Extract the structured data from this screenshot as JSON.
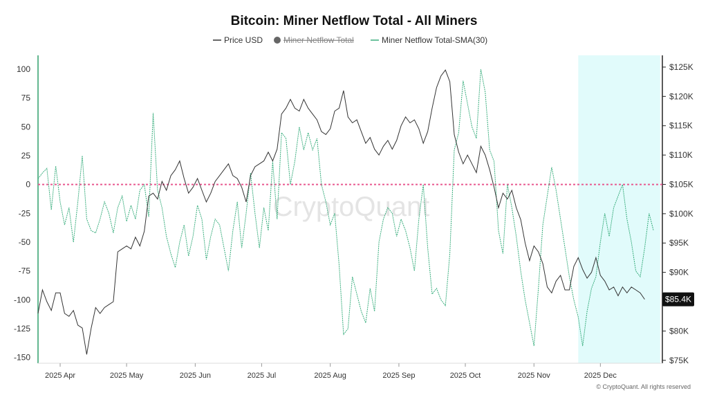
{
  "chart_data": {
    "type": "line",
    "title": "Bitcoin: Miner Netflow Total - All Miners",
    "legend": [
      {
        "name": "Price USD",
        "color": "#333333",
        "hidden": false
      },
      {
        "name": "Miner Netflow Total",
        "color": "#777777",
        "hidden": true
      },
      {
        "name": "Miner Netflow Total-SMA(30)",
        "color": "#3aae7e",
        "hidden": false
      }
    ],
    "x_ticks": [
      "2025 Apr",
      "2025 May",
      "2025 Jun",
      "2025 Jul",
      "2025 Aug",
      "2025 Sep",
      "2025 Oct",
      "2025 Nov",
      "2025 Dec"
    ],
    "x_tick_days": [
      10,
      40,
      71,
      101,
      132,
      163,
      193,
      224,
      254
    ],
    "x_range_days": [
      0,
      282
    ],
    "left_axis": {
      "ticks": [
        100,
        75,
        50,
        25,
        0,
        -25,
        -50,
        -75,
        -100,
        -125,
        -150
      ],
      "range": [
        -155,
        112
      ]
    },
    "right_axis": {
      "ticks": [
        "$125K",
        "$120K",
        "$115K",
        "$110K",
        "$105K",
        "$100K",
        "$95K",
        "$90K",
        "$80K",
        "$75K"
      ],
      "tick_values": [
        125000,
        120000,
        115000,
        110000,
        105000,
        100000,
        95000,
        90000,
        80000,
        75000
      ],
      "range": [
        74500,
        127000
      ]
    },
    "zero_line_color": "#e8588f",
    "highlight_range_days": [
      244,
      281
    ],
    "highlight_color": "#e1fbfb",
    "current_price_label": "$85.4K",
    "watermark": "CryptoQuant",
    "series": [
      {
        "name": "Price USD",
        "color": "#333333",
        "axis": "right",
        "points": [
          [
            0,
            83000
          ],
          [
            2,
            87000
          ],
          [
            4,
            85000
          ],
          [
            6,
            83500
          ],
          [
            8,
            86500
          ],
          [
            10,
            86500
          ],
          [
            12,
            83000
          ],
          [
            14,
            82500
          ],
          [
            16,
            83500
          ],
          [
            18,
            81000
          ],
          [
            20,
            80500
          ],
          [
            22,
            76000
          ],
          [
            24,
            80500
          ],
          [
            26,
            84000
          ],
          [
            28,
            83000
          ],
          [
            30,
            84000
          ],
          [
            32,
            84500
          ],
          [
            34,
            85000
          ],
          [
            36,
            93500
          ],
          [
            38,
            94000
          ],
          [
            40,
            94500
          ],
          [
            42,
            94000
          ],
          [
            44,
            96000
          ],
          [
            46,
            94500
          ],
          [
            48,
            97000
          ],
          [
            50,
            103000
          ],
          [
            52,
            103500
          ],
          [
            54,
            102500
          ],
          [
            56,
            105500
          ],
          [
            58,
            104000
          ],
          [
            60,
            106500
          ],
          [
            62,
            107500
          ],
          [
            64,
            109000
          ],
          [
            66,
            106000
          ],
          [
            68,
            103500
          ],
          [
            70,
            104500
          ],
          [
            72,
            106000
          ],
          [
            74,
            104000
          ],
          [
            76,
            102000
          ],
          [
            78,
            103500
          ],
          [
            80,
            105500
          ],
          [
            82,
            106500
          ],
          [
            84,
            107500
          ],
          [
            86,
            108500
          ],
          [
            88,
            106500
          ],
          [
            90,
            106000
          ],
          [
            92,
            104500
          ],
          [
            94,
            102000
          ],
          [
            96,
            106500
          ],
          [
            98,
            108000
          ],
          [
            100,
            108500
          ],
          [
            102,
            109000
          ],
          [
            104,
            110500
          ],
          [
            106,
            109000
          ],
          [
            108,
            111000
          ],
          [
            110,
            117000
          ],
          [
            112,
            118000
          ],
          [
            114,
            119500
          ],
          [
            116,
            118000
          ],
          [
            118,
            117500
          ],
          [
            120,
            119500
          ],
          [
            122,
            118000
          ],
          [
            124,
            117000
          ],
          [
            126,
            116000
          ],
          [
            128,
            114000
          ],
          [
            130,
            113500
          ],
          [
            132,
            114500
          ],
          [
            134,
            117500
          ],
          [
            136,
            118000
          ],
          [
            138,
            121000
          ],
          [
            140,
            116500
          ],
          [
            142,
            115500
          ],
          [
            144,
            116000
          ],
          [
            146,
            114000
          ],
          [
            148,
            112000
          ],
          [
            150,
            113000
          ],
          [
            152,
            111000
          ],
          [
            154,
            110000
          ],
          [
            156,
            111500
          ],
          [
            158,
            112500
          ],
          [
            160,
            111000
          ],
          [
            162,
            112500
          ],
          [
            164,
            115000
          ],
          [
            166,
            116500
          ],
          [
            168,
            115500
          ],
          [
            170,
            116000
          ],
          [
            172,
            114500
          ],
          [
            174,
            112000
          ],
          [
            176,
            114000
          ],
          [
            178,
            118000
          ],
          [
            180,
            121500
          ],
          [
            182,
            123500
          ],
          [
            184,
            124500
          ],
          [
            186,
            122500
          ],
          [
            188,
            113500
          ],
          [
            190,
            110500
          ],
          [
            192,
            108500
          ],
          [
            194,
            110000
          ],
          [
            196,
            108500
          ],
          [
            198,
            107000
          ],
          [
            200,
            111500
          ],
          [
            202,
            110000
          ],
          [
            204,
            107500
          ],
          [
            206,
            104500
          ],
          [
            208,
            101000
          ],
          [
            210,
            103500
          ],
          [
            212,
            102500
          ],
          [
            214,
            104000
          ],
          [
            216,
            101000
          ],
          [
            218,
            99000
          ],
          [
            220,
            95000
          ],
          [
            222,
            92000
          ],
          [
            224,
            94500
          ],
          [
            226,
            93500
          ],
          [
            228,
            91500
          ],
          [
            230,
            87500
          ],
          [
            232,
            86500
          ],
          [
            234,
            88500
          ],
          [
            236,
            89500
          ],
          [
            238,
            87000
          ],
          [
            240,
            87000
          ],
          [
            242,
            91000
          ],
          [
            244,
            92500
          ],
          [
            246,
            90500
          ],
          [
            248,
            89000
          ],
          [
            250,
            90000
          ],
          [
            252,
            92500
          ],
          [
            254,
            89500
          ],
          [
            256,
            88500
          ],
          [
            258,
            87000
          ],
          [
            260,
            87500
          ],
          [
            262,
            86000
          ],
          [
            264,
            87500
          ],
          [
            266,
            86500
          ],
          [
            268,
            87500
          ],
          [
            270,
            87000
          ],
          [
            272,
            86500
          ],
          [
            274,
            85400
          ]
        ]
      },
      {
        "name": "Miner Netflow Total-SMA(30)",
        "color": "#3aae7e",
        "axis": "left",
        "points": [
          [
            0,
            5
          ],
          [
            2,
            10
          ],
          [
            4,
            14
          ],
          [
            6,
            -22
          ],
          [
            8,
            16
          ],
          [
            10,
            -15
          ],
          [
            12,
            -35
          ],
          [
            14,
            -20
          ],
          [
            16,
            -50
          ],
          [
            18,
            -15
          ],
          [
            20,
            25
          ],
          [
            22,
            -30
          ],
          [
            24,
            -40
          ],
          [
            26,
            -42
          ],
          [
            28,
            -30
          ],
          [
            30,
            -15
          ],
          [
            32,
            -25
          ],
          [
            34,
            -42
          ],
          [
            36,
            -20
          ],
          [
            38,
            -10
          ],
          [
            40,
            -32
          ],
          [
            42,
            -18
          ],
          [
            44,
            -30
          ],
          [
            46,
            -5
          ],
          [
            48,
            0
          ],
          [
            50,
            -28
          ],
          [
            52,
            62
          ],
          [
            54,
            -5
          ],
          [
            56,
            -20
          ],
          [
            58,
            -45
          ],
          [
            60,
            -60
          ],
          [
            62,
            -72
          ],
          [
            64,
            -50
          ],
          [
            66,
            -35
          ],
          [
            68,
            -62
          ],
          [
            70,
            -45
          ],
          [
            72,
            -18
          ],
          [
            74,
            -30
          ],
          [
            76,
            -65
          ],
          [
            78,
            -45
          ],
          [
            80,
            -30
          ],
          [
            82,
            -35
          ],
          [
            84,
            -55
          ],
          [
            86,
            -75
          ],
          [
            88,
            -40
          ],
          [
            90,
            -15
          ],
          [
            92,
            -55
          ],
          [
            94,
            -25
          ],
          [
            96,
            10
          ],
          [
            98,
            -25
          ],
          [
            100,
            -55
          ],
          [
            102,
            -20
          ],
          [
            104,
            -40
          ],
          [
            106,
            20
          ],
          [
            108,
            -30
          ],
          [
            110,
            45
          ],
          [
            112,
            40
          ],
          [
            114,
            0
          ],
          [
            116,
            20
          ],
          [
            118,
            50
          ],
          [
            120,
            30
          ],
          [
            122,
            45
          ],
          [
            124,
            30
          ],
          [
            126,
            40
          ],
          [
            128,
            0
          ],
          [
            130,
            -15
          ],
          [
            132,
            -35
          ],
          [
            134,
            -25
          ],
          [
            136,
            -70
          ],
          [
            138,
            -130
          ],
          [
            140,
            -125
          ],
          [
            142,
            -80
          ],
          [
            144,
            -95
          ],
          [
            146,
            -110
          ],
          [
            148,
            -120
          ],
          [
            150,
            -90
          ],
          [
            152,
            -110
          ],
          [
            154,
            -50
          ],
          [
            156,
            -30
          ],
          [
            158,
            -20
          ],
          [
            160,
            -25
          ],
          [
            162,
            -45
          ],
          [
            164,
            -30
          ],
          [
            166,
            -40
          ],
          [
            168,
            -55
          ],
          [
            170,
            -75
          ],
          [
            172,
            -30
          ],
          [
            174,
            0
          ],
          [
            176,
            -55
          ],
          [
            178,
            -95
          ],
          [
            180,
            -90
          ],
          [
            182,
            -100
          ],
          [
            184,
            -105
          ],
          [
            186,
            -60
          ],
          [
            188,
            30
          ],
          [
            190,
            45
          ],
          [
            192,
            90
          ],
          [
            194,
            70
          ],
          [
            196,
            50
          ],
          [
            198,
            40
          ],
          [
            200,
            100
          ],
          [
            202,
            80
          ],
          [
            204,
            30
          ],
          [
            206,
            20
          ],
          [
            208,
            -40
          ],
          [
            210,
            -60
          ],
          [
            212,
            0
          ],
          [
            214,
            -20
          ],
          [
            216,
            -45
          ],
          [
            218,
            -75
          ],
          [
            220,
            -100
          ],
          [
            222,
            -120
          ],
          [
            224,
            -140
          ],
          [
            226,
            -90
          ],
          [
            228,
            -35
          ],
          [
            230,
            -10
          ],
          [
            232,
            15
          ],
          [
            234,
            -5
          ],
          [
            236,
            -30
          ],
          [
            238,
            -55
          ],
          [
            240,
            -80
          ],
          [
            242,
            -100
          ],
          [
            244,
            -115
          ],
          [
            246,
            -140
          ],
          [
            248,
            -110
          ],
          [
            250,
            -90
          ],
          [
            252,
            -80
          ],
          [
            254,
            -50
          ],
          [
            256,
            -25
          ],
          [
            258,
            -45
          ],
          [
            260,
            -20
          ],
          [
            262,
            -10
          ],
          [
            264,
            0
          ],
          [
            266,
            -30
          ],
          [
            268,
            -50
          ],
          [
            270,
            -75
          ],
          [
            272,
            -80
          ],
          [
            274,
            -55
          ],
          [
            276,
            -25
          ],
          [
            278,
            -40
          ]
        ]
      }
    ]
  },
  "footer": {
    "copyright": "© CryptoQuant. All rights reserved"
  }
}
